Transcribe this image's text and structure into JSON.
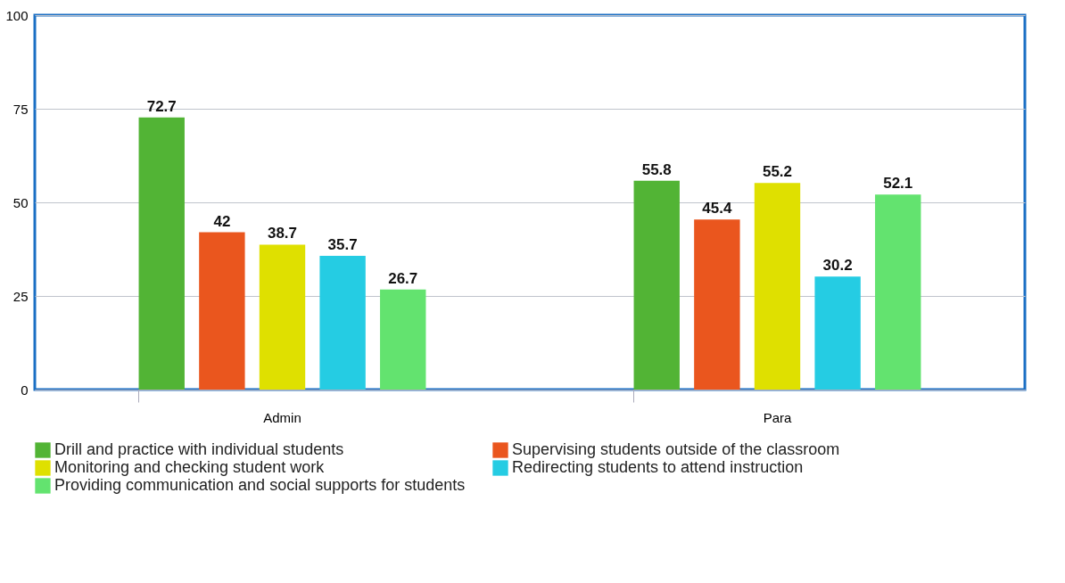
{
  "chart_data": {
    "type": "bar",
    "categories": [
      "Admin",
      "Para"
    ],
    "series": [
      {
        "name": "Drill and practice with individual students",
        "color": "#52b435",
        "values": [
          72.7,
          55.8
        ]
      },
      {
        "name": "Supervising students outside of the classroom",
        "color": "#ea561e",
        "values": [
          42,
          45.4
        ]
      },
      {
        "name": "Monitoring and checking student work",
        "color": "#dfe000",
        "values": [
          38.7,
          55.2
        ]
      },
      {
        "name": "Redirecting students to attend instruction",
        "color": "#25cce3",
        "values": [
          35.7,
          30.2
        ]
      },
      {
        "name": "Providing communication and social supports for students",
        "color": "#63e36f",
        "values": [
          26.7,
          52.1
        ]
      }
    ],
    "ylim": [
      0,
      100
    ],
    "yticks": [
      0,
      25,
      50,
      75,
      100
    ],
    "grid": "y",
    "legend": "bottom",
    "data_labels": true
  }
}
